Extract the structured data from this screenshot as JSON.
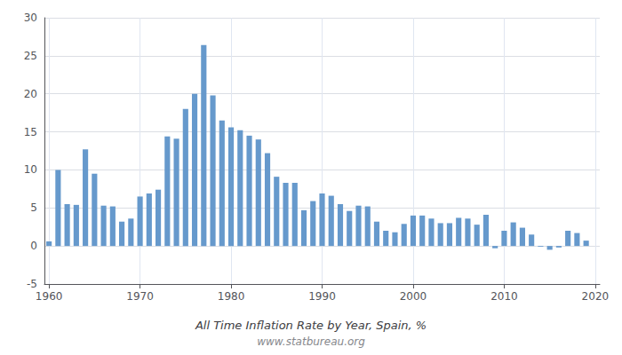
{
  "chart_data": {
    "type": "bar",
    "title": "All Time Inflation Rate by Year, Spain, %",
    "subtitle": "www.statbureau.org",
    "x": [
      1960,
      1961,
      1962,
      1963,
      1964,
      1965,
      1966,
      1967,
      1968,
      1969,
      1970,
      1971,
      1972,
      1973,
      1974,
      1975,
      1976,
      1977,
      1978,
      1979,
      1980,
      1981,
      1982,
      1983,
      1984,
      1985,
      1986,
      1987,
      1988,
      1989,
      1990,
      1991,
      1992,
      1993,
      1994,
      1995,
      1996,
      1997,
      1998,
      1999,
      2000,
      2001,
      2002,
      2003,
      2004,
      2005,
      2006,
      2007,
      2008,
      2009,
      2010,
      2011,
      2012,
      2013,
      2014,
      2015,
      2016,
      2017,
      2018,
      2019
    ],
    "values": [
      0.6,
      10.0,
      5.5,
      5.4,
      12.7,
      9.5,
      5.3,
      5.2,
      3.2,
      3.6,
      6.5,
      6.9,
      7.4,
      14.4,
      14.1,
      18.0,
      20.0,
      26.4,
      19.8,
      16.5,
      15.6,
      15.2,
      14.5,
      14.0,
      12.2,
      9.1,
      8.3,
      8.3,
      4.7,
      5.9,
      6.9,
      6.6,
      5.5,
      4.6,
      5.3,
      5.2,
      3.2,
      2.0,
      1.8,
      2.9,
      4.0,
      4.0,
      3.6,
      3.0,
      3.0,
      3.7,
      3.6,
      2.8,
      4.1,
      -0.3,
      2.0,
      3.1,
      2.4,
      1.5,
      -0.1,
      -0.5,
      -0.2,
      2.0,
      1.7,
      0.7
    ],
    "color": "#6699cc",
    "xlim": [
      1959.5,
      2020.5
    ],
    "xticks": [
      1960,
      1970,
      1980,
      1990,
      2000,
      2010,
      2020
    ],
    "ylim": [
      -5,
      30
    ],
    "yticks": [
      -5,
      0,
      5,
      10,
      15,
      20,
      25,
      30
    ],
    "grid": true
  }
}
